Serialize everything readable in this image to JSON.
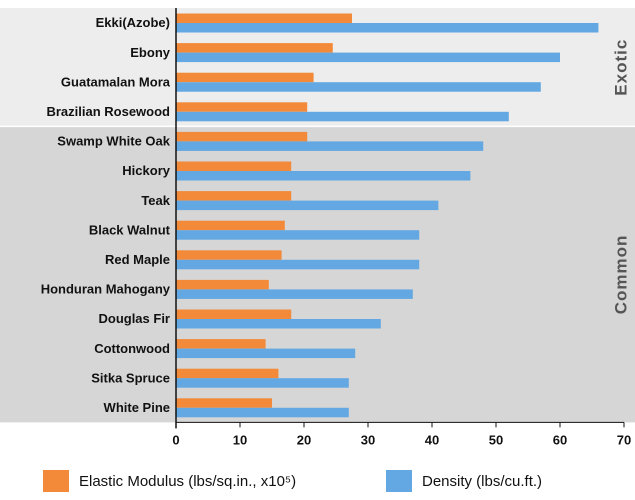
{
  "colors": {
    "elastic_modulus": "#f28a3a",
    "density": "#63a8e2",
    "exotic_band": "#ededed",
    "common_band": "#d6d6d6",
    "axis": "#111111"
  },
  "chart_data": {
    "type": "bar",
    "orientation": "horizontal",
    "categories": [
      "Ekki(Azobe)",
      "Ebony",
      "Guatamalan Mora",
      "Brazilian Rosewood",
      "Swamp White Oak",
      "Hickory",
      "Teak",
      "Black Walnut",
      "Red Maple",
      "Honduran Mahogany",
      "Douglas Fir",
      "Cottonwood",
      "Sitka Spruce",
      "White Pine"
    ],
    "series": [
      {
        "name": "Elastic Modulus (lbs/sq.in., x10⁵)",
        "values": [
          27.5,
          24.5,
          21.5,
          20.5,
          20.5,
          18,
          18,
          17,
          16.5,
          14.5,
          18,
          14,
          16,
          15
        ]
      },
      {
        "name": "Density (lbs/cu.ft.)",
        "values": [
          66,
          60,
          57,
          52,
          48,
          46,
          41,
          38,
          38,
          37,
          32,
          28,
          27,
          27
        ]
      }
    ],
    "groups": [
      {
        "label": "Exotic",
        "categories": [
          "Ekki(Azobe)",
          "Ebony",
          "Guatamalan Mora",
          "Brazilian Rosewood"
        ]
      },
      {
        "label": "Common",
        "categories": [
          "Swamp White Oak",
          "Hickory",
          "Teak",
          "Black Walnut",
          "Red Maple",
          "Honduran Mahogany",
          "Douglas Fir",
          "Cottonwood",
          "Sitka Spruce",
          "White Pine"
        ]
      }
    ],
    "xlim": [
      0,
      70
    ],
    "xticks": [
      0,
      10,
      20,
      30,
      40,
      50,
      60,
      70
    ],
    "grid": false,
    "legend_position": "bottom"
  }
}
